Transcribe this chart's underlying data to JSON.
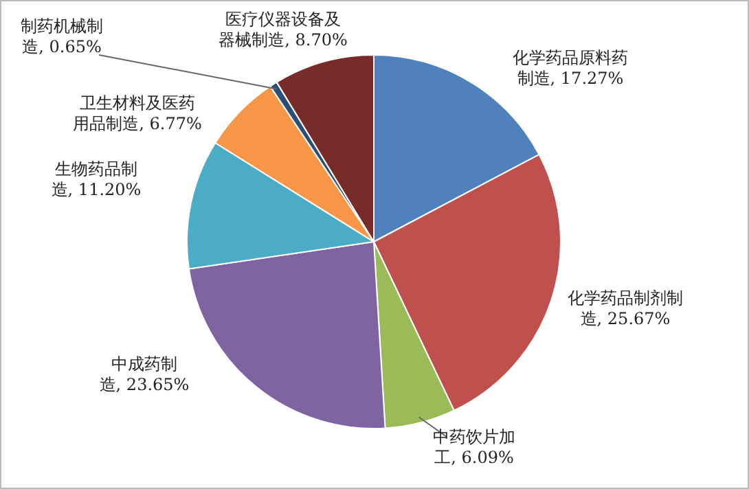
{
  "chart_data": {
    "type": "pie",
    "categories": [
      "化学药品原料药制造",
      "化学药品制剂制造",
      "中药饮片加工",
      "中成药制造",
      "生物药品制造",
      "卫生材料及医药用品制造",
      "制药机械制造",
      "医疗仪器设备及器械制造"
    ],
    "values": [
      17.27,
      25.67,
      6.09,
      23.65,
      11.2,
      6.77,
      0.65,
      8.7
    ],
    "value_labels": [
      ", 17.27%",
      ", 25.67%",
      ", 6.09%",
      ", 23.65%",
      ", 11.20%",
      ", 6.77%",
      ", 0.65%",
      ", 8.70%"
    ],
    "colors": [
      "#4f81bd",
      "#c0504d",
      "#9bbb59",
      "#8064a2",
      "#4bacc6",
      "#f79646",
      "#2c4d75",
      "#772c2a"
    ]
  }
}
